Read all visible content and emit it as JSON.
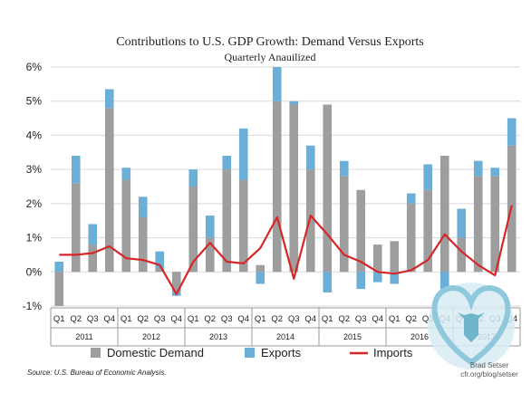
{
  "chart_data": {
    "type": "bar",
    "title": "Contributions to U.S. GDP Growth: Demand Versus Exports",
    "subtitle": "Quarterly Anauilized",
    "categories": [
      "Q1",
      "Q2",
      "Q3",
      "Q4",
      "Q1",
      "Q2",
      "Q3",
      "Q4",
      "Q1",
      "Q2",
      "Q3",
      "Q4",
      "Q1",
      "Q2",
      "Q3",
      "Q4",
      "Q1",
      "Q2",
      "Q3",
      "Q4",
      "Q1",
      "Q2",
      "Q3",
      "Q4",
      "Q1",
      "Q2",
      "Q3",
      "Q4"
    ],
    "year_groups": [
      {
        "label": "2011",
        "start": 0,
        "end": 3
      },
      {
        "label": "2012",
        "start": 4,
        "end": 7
      },
      {
        "label": "2013",
        "start": 8,
        "end": 11
      },
      {
        "label": "2014",
        "start": 12,
        "end": 15
      },
      {
        "label": "2015",
        "start": 16,
        "end": 19
      },
      {
        "label": "2016",
        "start": 20,
        "end": 23
      },
      {
        "label": "2017",
        "start": 24,
        "end": 27
      }
    ],
    "series": [
      {
        "name": "Domestic Demand",
        "type": "bar",
        "color": "#9e9e9e",
        "values": [
          -1.0,
          2.6,
          0.8,
          4.8,
          2.7,
          1.6,
          0.1,
          -0.6,
          2.5,
          1.0,
          3.0,
          2.7,
          0.2,
          5.0,
          4.9,
          3.0,
          4.9,
          2.8,
          2.4,
          0.8,
          0.9,
          2.0,
          2.4,
          3.4,
          1.0,
          2.8,
          2.8,
          3.7
        ]
      },
      {
        "name": "Exports",
        "type": "bar",
        "color": "#6baed6",
        "values": [
          0.3,
          0.8,
          0.6,
          0.55,
          0.35,
          0.6,
          0.5,
          -0.1,
          0.5,
          0.65,
          0.4,
          1.5,
          -0.35,
          1.0,
          0.1,
          0.7,
          -0.6,
          0.45,
          -0.5,
          -0.3,
          -0.35,
          0.3,
          0.75,
          -0.5,
          0.85,
          0.45,
          0.25,
          0.8
        ]
      },
      {
        "name": "Imports",
        "type": "line",
        "color": "#d62728",
        "values": [
          0.5,
          0.5,
          0.55,
          0.75,
          0.4,
          0.35,
          0.2,
          -0.65,
          0.3,
          0.85,
          0.3,
          0.25,
          0.7,
          1.6,
          -0.2,
          1.65,
          1.1,
          0.5,
          0.3,
          0.0,
          -0.05,
          0.05,
          0.35,
          1.1,
          0.6,
          0.2,
          -0.1,
          1.95
        ]
      }
    ],
    "ylim": [
      -1,
      6
    ],
    "yticks": [
      -1,
      0,
      1,
      2,
      3,
      4,
      5,
      6
    ],
    "ytick_labels": [
      "-1%",
      "0%",
      "1%",
      "2%",
      "3%",
      "4%",
      "5%",
      "6%"
    ],
    "grid": true,
    "legend_position": "bottom",
    "source": "Source: U.S. Bureau of Economic Analysis.",
    "credit": [
      "Brad Setser",
      "cfr.org/blog/setser"
    ]
  }
}
